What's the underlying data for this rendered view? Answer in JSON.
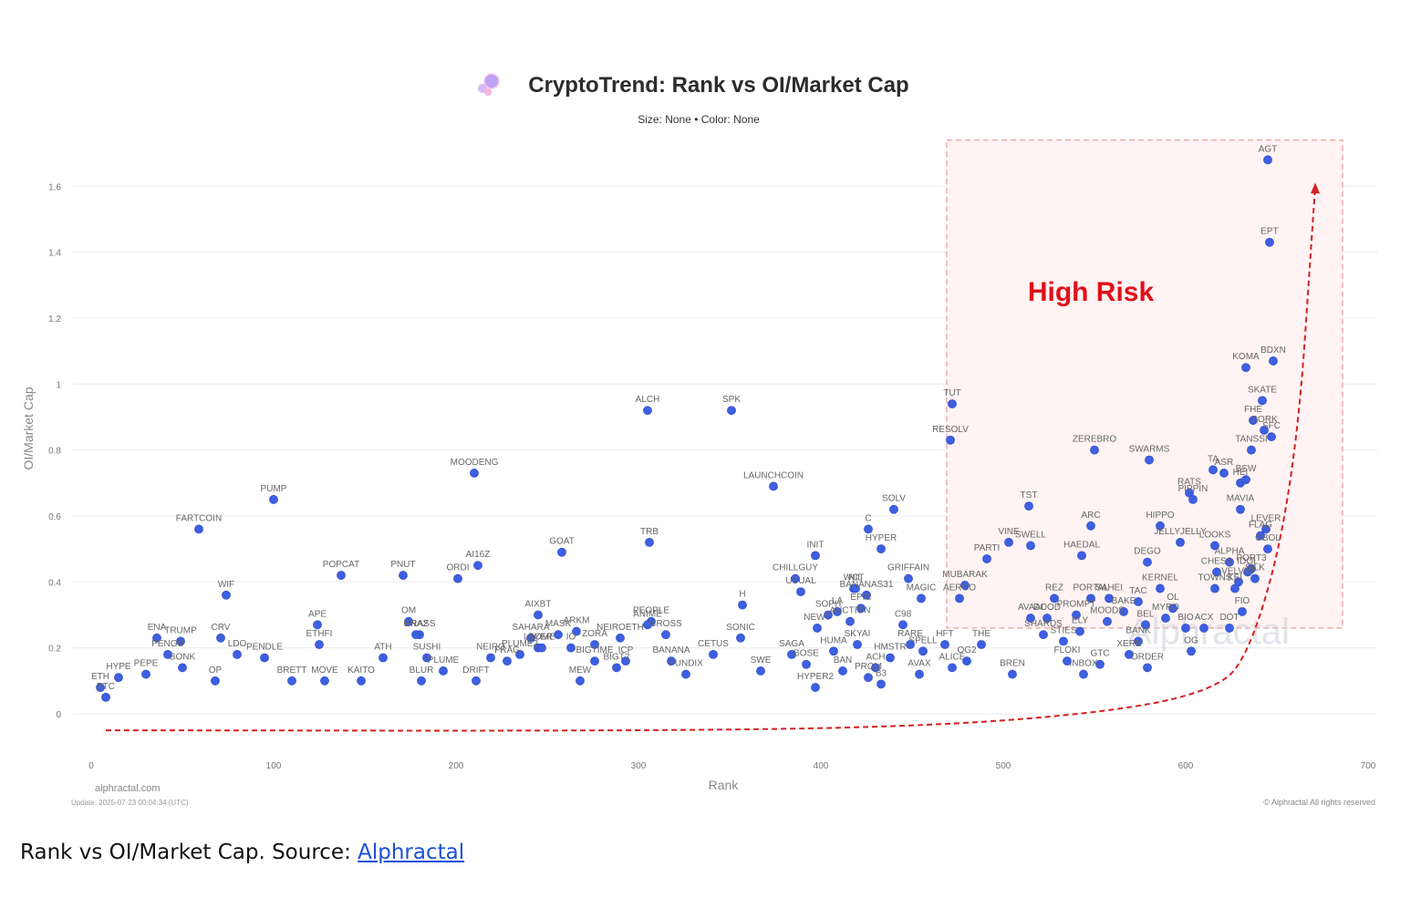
{
  "chart_data": {
    "type": "scatter",
    "title": "CryptoTrend: Rank vs OI/Market Cap",
    "subtitle": "Size: None • Color: None",
    "xlabel": "Rank",
    "ylabel": "OI/Market Cap",
    "xlim": [
      -10,
      705
    ],
    "ylim": [
      -0.13,
      1.75
    ],
    "xticks": [
      0,
      100,
      200,
      300,
      400,
      500,
      600,
      700
    ],
    "yticks": [
      0,
      0.2,
      0.4,
      0.6,
      0.8,
      1,
      1.2,
      1.4,
      1.6
    ],
    "ytick_labels": [
      "0",
      "0.2",
      "0.4",
      "0.6",
      "0.8",
      "1",
      "1.2",
      "1.4",
      "1.6"
    ],
    "grid": "horizontal",
    "point_color": "#3d5fe0",
    "annotation": {
      "text": "High Risk",
      "color": "#e0101a",
      "region": {
        "x": [
          469,
          686
        ],
        "y": [
          0.26,
          1.74
        ]
      }
    },
    "trend_arrow": {
      "color": "#d42020",
      "points": [
        [
          8,
          -0.05
        ],
        [
          300,
          -0.052
        ],
        [
          450,
          -0.04
        ],
        [
          550,
          0.0
        ],
        [
          610,
          0.06
        ],
        [
          635,
          0.16
        ],
        [
          660,
          0.7
        ],
        [
          671,
          1.6
        ]
      ]
    },
    "watermark": "Alphractal",
    "site_label": "alphractal.com",
    "update_label": "Update: 2025-07-23 00:04:34 (UTC)",
    "copyright": "© Alphractal All rights reserved",
    "points": [
      {
        "x": 645,
        "y": 1.68,
        "label": "AGT"
      },
      {
        "x": 646,
        "y": 1.43,
        "label": "EPT"
      },
      {
        "x": 648,
        "y": 1.07,
        "label": "BDXN"
      },
      {
        "x": 633,
        "y": 1.05,
        "label": "KOMA"
      },
      {
        "x": 642,
        "y": 0.95,
        "label": "SKATE"
      },
      {
        "x": 637,
        "y": 0.89,
        "label": "FHE"
      },
      {
        "x": 643,
        "y": 0.86,
        "label": "GORK"
      },
      {
        "x": 647,
        "y": 0.84,
        "label": "SFC"
      },
      {
        "x": 636,
        "y": 0.8,
        "label": "TANSSI"
      },
      {
        "x": 615,
        "y": 0.74,
        "label": "TA"
      },
      {
        "x": 621,
        "y": 0.73,
        "label": "ASR"
      },
      {
        "x": 630,
        "y": 0.7,
        "label": "HEI"
      },
      {
        "x": 633,
        "y": 0.71,
        "label": "BSW"
      },
      {
        "x": 602,
        "y": 0.67,
        "label": "RATS"
      },
      {
        "x": 604,
        "y": 0.65,
        "label": "PIPPIN"
      },
      {
        "x": 630,
        "y": 0.62,
        "label": "MAVIA"
      },
      {
        "x": 644,
        "y": 0.56,
        "label": "LEVER"
      },
      {
        "x": 580,
        "y": 0.77,
        "label": "SWARMS"
      },
      {
        "x": 550,
        "y": 0.8,
        "label": "ZEREBRO"
      },
      {
        "x": 472,
        "y": 0.94,
        "label": "TUT"
      },
      {
        "x": 471,
        "y": 0.83,
        "label": "RESOLV"
      },
      {
        "x": 514,
        "y": 0.63,
        "label": "TST"
      },
      {
        "x": 548,
        "y": 0.57,
        "label": "ARC"
      },
      {
        "x": 586,
        "y": 0.57,
        "label": "HIPPO"
      },
      {
        "x": 597,
        "y": 0.52,
        "label": "JELLYJELLY"
      },
      {
        "x": 616,
        "y": 0.51,
        "label": "LOOKS"
      },
      {
        "x": 641,
        "y": 0.54,
        "label": "FLAG"
      },
      {
        "x": 645,
        "y": 0.5,
        "label": "OBOL"
      },
      {
        "x": 515,
        "y": 0.51,
        "label": "SWELL"
      },
      {
        "x": 503,
        "y": 0.52,
        "label": "VINE"
      },
      {
        "x": 491,
        "y": 0.47,
        "label": "PARTI"
      },
      {
        "x": 543,
        "y": 0.48,
        "label": "HAEDAL"
      },
      {
        "x": 579,
        "y": 0.46,
        "label": "DEGO"
      },
      {
        "x": 624,
        "y": 0.46,
        "label": "ALPHA"
      },
      {
        "x": 636,
        "y": 0.44,
        "label": "PORT3"
      },
      {
        "x": 617,
        "y": 0.43,
        "label": "CHESS"
      },
      {
        "x": 634,
        "y": 0.43,
        "label": "IDOL"
      },
      {
        "x": 629,
        "y": 0.4,
        "label": "VELVET"
      },
      {
        "x": 638,
        "y": 0.41,
        "label": "SILK"
      },
      {
        "x": 586,
        "y": 0.38,
        "label": "KERNEL"
      },
      {
        "x": 479,
        "y": 0.39,
        "label": "MUBARAK"
      },
      {
        "x": 476,
        "y": 0.35,
        "label": "AERGO"
      },
      {
        "x": 528,
        "y": 0.35,
        "label": "REZ"
      },
      {
        "x": 548,
        "y": 0.35,
        "label": "PORTAL"
      },
      {
        "x": 558,
        "y": 0.35,
        "label": "SAHEI"
      },
      {
        "x": 574,
        "y": 0.34,
        "label": "TAC"
      },
      {
        "x": 616,
        "y": 0.38,
        "label": "TOWNS"
      },
      {
        "x": 627,
        "y": 0.38,
        "label": "KEI"
      },
      {
        "x": 593,
        "y": 0.32,
        "label": "OL"
      },
      {
        "x": 589,
        "y": 0.29,
        "label": "MYRO"
      },
      {
        "x": 631,
        "y": 0.31,
        "label": "FIO"
      },
      {
        "x": 566,
        "y": 0.31,
        "label": "BAKE"
      },
      {
        "x": 515,
        "y": 0.29,
        "label": "AVAAI"
      },
      {
        "x": 524,
        "y": 0.29,
        "label": "DOOD"
      },
      {
        "x": 540,
        "y": 0.3,
        "label": "PROMPT"
      },
      {
        "x": 557,
        "y": 0.28,
        "label": "MOODS"
      },
      {
        "x": 578,
        "y": 0.27,
        "label": "BEL"
      },
      {
        "x": 600,
        "y": 0.26,
        "label": "BIO"
      },
      {
        "x": 610,
        "y": 0.26,
        "label": "ACX"
      },
      {
        "x": 624,
        "y": 0.26,
        "label": "DOT"
      },
      {
        "x": 574,
        "y": 0.22,
        "label": "BANK"
      },
      {
        "x": 542,
        "y": 0.25,
        "label": "ELY"
      },
      {
        "x": 533,
        "y": 0.22,
        "label": "STIES"
      },
      {
        "x": 522,
        "y": 0.24,
        "label": "SHARDS"
      },
      {
        "x": 488,
        "y": 0.21,
        "label": "THE"
      },
      {
        "x": 603,
        "y": 0.19,
        "label": "OG"
      },
      {
        "x": 569,
        "y": 0.18,
        "label": "XERE"
      },
      {
        "x": 579,
        "y": 0.14,
        "label": "ORDER"
      },
      {
        "x": 553,
        "y": 0.15,
        "label": "GTC"
      },
      {
        "x": 544,
        "y": 0.12,
        "label": "INBOX"
      },
      {
        "x": 535,
        "y": 0.16,
        "label": "FLOKI"
      },
      {
        "x": 505,
        "y": 0.12,
        "label": "BREN"
      },
      {
        "x": 472,
        "y": 0.14,
        "label": "ALICE"
      },
      {
        "x": 480,
        "y": 0.16,
        "label": "OG2"
      },
      {
        "x": 468,
        "y": 0.21,
        "label": "HFT"
      },
      {
        "x": 456,
        "y": 0.19,
        "label": "SPELL"
      },
      {
        "x": 449,
        "y": 0.21,
        "label": "RARE"
      },
      {
        "x": 438,
        "y": 0.17,
        "label": "HMSTR"
      },
      {
        "x": 454,
        "y": 0.12,
        "label": "AVAX"
      },
      {
        "x": 430,
        "y": 0.14,
        "label": "ACH"
      },
      {
        "x": 445,
        "y": 0.27,
        "label": "C98"
      },
      {
        "x": 455,
        "y": 0.35,
        "label": "MAGIC"
      },
      {
        "x": 448,
        "y": 0.41,
        "label": "GRIFFAIN"
      },
      {
        "x": 440,
        "y": 0.62,
        "label": "SOLV"
      },
      {
        "x": 426,
        "y": 0.56,
        "label": "C"
      },
      {
        "x": 433,
        "y": 0.5,
        "label": "HYPER"
      },
      {
        "x": 397,
        "y": 0.48,
        "label": "INIT"
      },
      {
        "x": 386,
        "y": 0.41,
        "label": "CHILLGUY"
      },
      {
        "x": 389,
        "y": 0.37,
        "label": "USUAL"
      },
      {
        "x": 418,
        "y": 0.38,
        "label": "WCT"
      },
      {
        "x": 419,
        "y": 0.38,
        "label": "NIL"
      },
      {
        "x": 425,
        "y": 0.36,
        "label": "BANANAS31"
      },
      {
        "x": 409,
        "y": 0.31,
        "label": "LA"
      },
      {
        "x": 422,
        "y": 0.32,
        "label": "EPIC"
      },
      {
        "x": 404,
        "y": 0.3,
        "label": "SOPH"
      },
      {
        "x": 398,
        "y": 0.26,
        "label": "NEWT"
      },
      {
        "x": 416,
        "y": 0.28,
        "label": "AUCTION"
      },
      {
        "x": 357,
        "y": 0.33,
        "label": "H"
      },
      {
        "x": 356,
        "y": 0.23,
        "label": "SONIC"
      },
      {
        "x": 374,
        "y": 0.69,
        "label": "LAUNCHCOIN"
      },
      {
        "x": 351,
        "y": 0.92,
        "label": "SPK"
      },
      {
        "x": 305,
        "y": 0.92,
        "label": "ALCH"
      },
      {
        "x": 306,
        "y": 0.52,
        "label": "TRB"
      },
      {
        "x": 210,
        "y": 0.73,
        "label": "MOODENG"
      },
      {
        "x": 258,
        "y": 0.49,
        "label": "GOAT"
      },
      {
        "x": 212,
        "y": 0.45,
        "label": "AI16Z"
      },
      {
        "x": 201,
        "y": 0.41,
        "label": "ORDI"
      },
      {
        "x": 171,
        "y": 0.42,
        "label": "PNUT"
      },
      {
        "x": 137,
        "y": 0.42,
        "label": "POPCAT"
      },
      {
        "x": 100,
        "y": 0.65,
        "label": "PUMP"
      },
      {
        "x": 59,
        "y": 0.56,
        "label": "FARTCOIN"
      },
      {
        "x": 74,
        "y": 0.36,
        "label": "WIF"
      },
      {
        "x": 245,
        "y": 0.3,
        "label": "AIXBT"
      },
      {
        "x": 307,
        "y": 0.28,
        "label": "PEOPLE"
      },
      {
        "x": 305,
        "y": 0.27,
        "label": "ANIME"
      },
      {
        "x": 315,
        "y": 0.24,
        "label": "CROSS"
      },
      {
        "x": 290,
        "y": 0.23,
        "label": "NEIROETH"
      },
      {
        "x": 266,
        "y": 0.25,
        "label": "ARKM"
      },
      {
        "x": 256,
        "y": 0.24,
        "label": "MASK"
      },
      {
        "x": 241,
        "y": 0.23,
        "label": "SAHARA"
      },
      {
        "x": 245,
        "y": 0.2,
        "label": "LAYER"
      },
      {
        "x": 276,
        "y": 0.21,
        "label": "ZORA"
      },
      {
        "x": 263,
        "y": 0.2,
        "label": "IO"
      },
      {
        "x": 247,
        "y": 0.2,
        "label": "BOME"
      },
      {
        "x": 174,
        "y": 0.28,
        "label": "OM"
      },
      {
        "x": 180,
        "y": 0.24,
        "label": "GRASS"
      },
      {
        "x": 178,
        "y": 0.24,
        "label": "ENA2"
      },
      {
        "x": 124,
        "y": 0.27,
        "label": "APE"
      },
      {
        "x": 125,
        "y": 0.21,
        "label": "ETHFI"
      },
      {
        "x": 71,
        "y": 0.23,
        "label": "CRV"
      },
      {
        "x": 80,
        "y": 0.18,
        "label": "LDO"
      },
      {
        "x": 36,
        "y": 0.23,
        "label": "ENA"
      },
      {
        "x": 49,
        "y": 0.22,
        "label": "TRUMP"
      },
      {
        "x": 42,
        "y": 0.18,
        "label": "PENGU"
      },
      {
        "x": 95,
        "y": 0.17,
        "label": "PENDLE"
      },
      {
        "x": 160,
        "y": 0.17,
        "label": "ATH"
      },
      {
        "x": 184,
        "y": 0.17,
        "label": "SUSHI"
      },
      {
        "x": 219,
        "y": 0.17,
        "label": "NEIRO"
      },
      {
        "x": 235,
        "y": 0.18,
        "label": "PLUME2"
      },
      {
        "x": 228,
        "y": 0.16,
        "label": "FRAG"
      },
      {
        "x": 276,
        "y": 0.16,
        "label": "BIGTIME"
      },
      {
        "x": 293,
        "y": 0.16,
        "label": "ICP"
      },
      {
        "x": 318,
        "y": 0.16,
        "label": "BANANA"
      },
      {
        "x": 341,
        "y": 0.18,
        "label": "CETUS"
      },
      {
        "x": 384,
        "y": 0.18,
        "label": "SAGA"
      },
      {
        "x": 407,
        "y": 0.19,
        "label": "HUMA"
      },
      {
        "x": 420,
        "y": 0.21,
        "label": "SKYAI"
      },
      {
        "x": 15,
        "y": 0.11,
        "label": "HYPE"
      },
      {
        "x": 30,
        "y": 0.12,
        "label": "PEPE"
      },
      {
        "x": 5,
        "y": 0.08,
        "label": "ETH"
      },
      {
        "x": 8,
        "y": 0.05,
        "label": "BTC"
      },
      {
        "x": 50,
        "y": 0.14,
        "label": "BONK"
      },
      {
        "x": 68,
        "y": 0.1,
        "label": "OP"
      },
      {
        "x": 110,
        "y": 0.1,
        "label": "BRETT"
      },
      {
        "x": 128,
        "y": 0.1,
        "label": "MOVE"
      },
      {
        "x": 148,
        "y": 0.1,
        "label": "KAITO"
      },
      {
        "x": 181,
        "y": 0.1,
        "label": "BLUR"
      },
      {
        "x": 193,
        "y": 0.13,
        "label": "PLUME"
      },
      {
        "x": 211,
        "y": 0.1,
        "label": "DRIFT"
      },
      {
        "x": 268,
        "y": 0.1,
        "label": "MEW"
      },
      {
        "x": 288,
        "y": 0.14,
        "label": "BIGT2"
      },
      {
        "x": 326,
        "y": 0.12,
        "label": "PUNDIX"
      },
      {
        "x": 367,
        "y": 0.13,
        "label": "SWE"
      },
      {
        "x": 392,
        "y": 0.15,
        "label": "BOSE"
      },
      {
        "x": 412,
        "y": 0.13,
        "label": "BAN"
      },
      {
        "x": 426,
        "y": 0.11,
        "label": "PROM"
      },
      {
        "x": 433,
        "y": 0.09,
        "label": "B3"
      },
      {
        "x": 397,
        "y": 0.08,
        "label": "HYPER2"
      }
    ]
  },
  "caption": {
    "text": "Rank vs OI/Market Cap. Source: ",
    "link": "Alphractal"
  }
}
